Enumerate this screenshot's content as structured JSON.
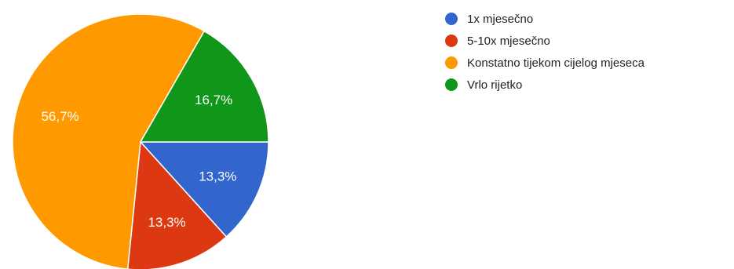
{
  "chart_data": {
    "type": "pie",
    "title": "",
    "legend_position": "right",
    "series": [
      {
        "name": "1x mjesečno",
        "value": 13.3,
        "label": "13,3%",
        "color": "#3366cc"
      },
      {
        "name": "5-10x mjesečno",
        "value": 13.3,
        "label": "13,3%",
        "color": "#dc3912"
      },
      {
        "name": "Konstatno tijekom cijelog mjeseca",
        "value": 56.7,
        "label": "56,7%",
        "color": "#ff9900"
      },
      {
        "name": "Vrlo rijetko",
        "value": 16.7,
        "label": "16,7%",
        "color": "#109618"
      }
    ]
  }
}
